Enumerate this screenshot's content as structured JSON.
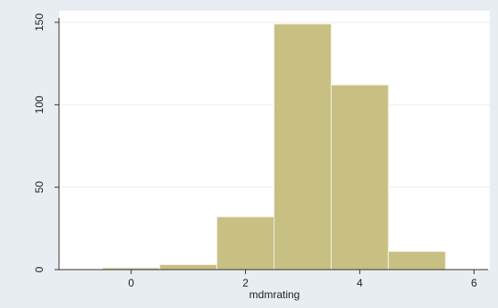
{
  "chart_data": {
    "type": "bar",
    "subtype": "histogram",
    "xlabel": "mdmrating",
    "ylabel": "",
    "xlim": [
      -1.2,
      6.2
    ],
    "ylim": [
      0,
      155
    ],
    "xticks": [
      0,
      2,
      4,
      6
    ],
    "yticks": [
      0,
      50,
      100,
      150
    ],
    "grid": "horizontal",
    "bins": [
      {
        "from": -0.5,
        "to": 0.5,
        "value": 1
      },
      {
        "from": 0.5,
        "to": 1.5,
        "value": 3
      },
      {
        "from": 1.5,
        "to": 2.5,
        "value": 32
      },
      {
        "from": 2.5,
        "to": 3.5,
        "value": 149
      },
      {
        "from": 3.5,
        "to": 4.5,
        "value": 112
      },
      {
        "from": 4.5,
        "to": 5.5,
        "value": 11
      }
    ],
    "colors": {
      "bar_fill": "#c8bf82",
      "bar_stroke": "#f4f0dc",
      "background": "#e8edf2",
      "plot_area": "#ffffff",
      "grid": "#e9eef3",
      "axis": "#333333"
    }
  }
}
